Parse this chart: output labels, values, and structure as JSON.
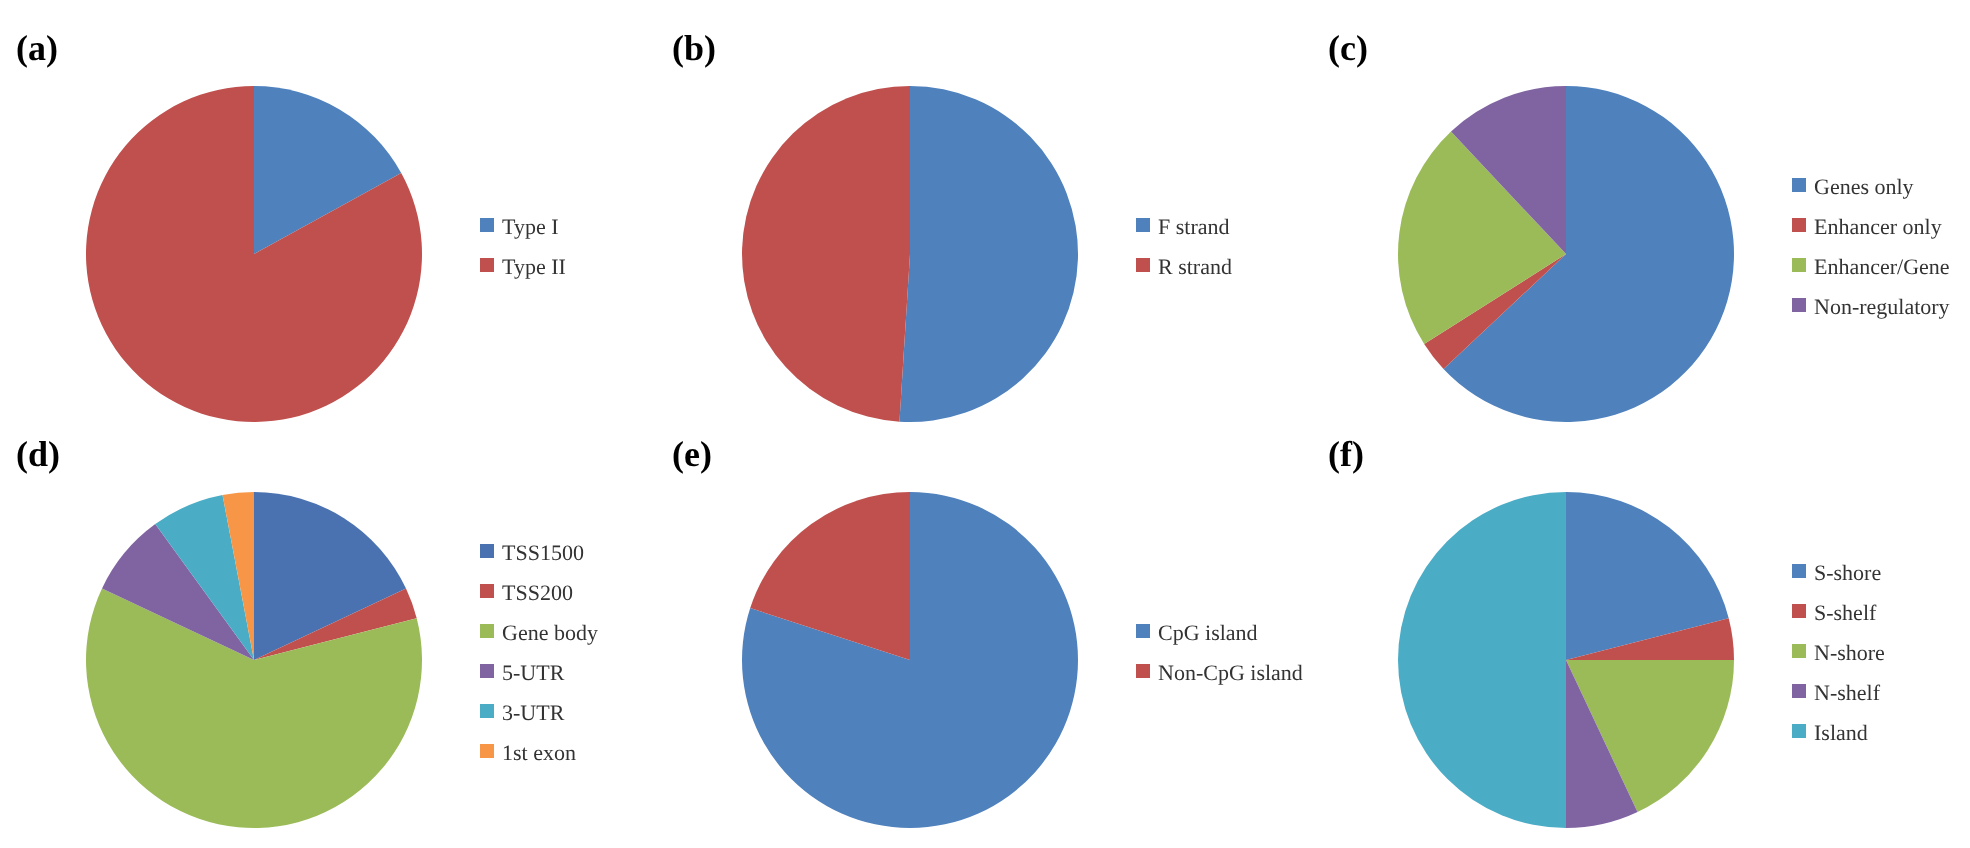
{
  "chart_data": [
    {
      "type": "pie",
      "title": "(a)",
      "categories": [
        "Type I",
        "Type II"
      ],
      "values": [
        17,
        83
      ],
      "colors": [
        "#4f81bd",
        "#c0504d"
      ],
      "legend": "right"
    },
    {
      "type": "pie",
      "title": "(b)",
      "categories": [
        "F strand",
        "R strand"
      ],
      "values": [
        51,
        49
      ],
      "colors": [
        "#4f81bd",
        "#c0504d"
      ],
      "legend": "right"
    },
    {
      "type": "pie",
      "title": "(c)",
      "categories": [
        "Genes only",
        "Enhancer only",
        "Enhancer/Gene",
        "Non-regulatory"
      ],
      "values": [
        63,
        3,
        22,
        12
      ],
      "colors": [
        "#4f81bd",
        "#c0504d",
        "#9bbb59",
        "#8064a2"
      ],
      "legend": "right"
    },
    {
      "type": "pie",
      "title": "(d)",
      "categories": [
        "TSS1500",
        "TSS200",
        "Gene body",
        "5-UTR",
        "3-UTR",
        "1st exon"
      ],
      "values": [
        18,
        3,
        61,
        8,
        7,
        3
      ],
      "colors": [
        "#4a72b0",
        "#c0504d",
        "#9bbb59",
        "#8064a2",
        "#4bacc6",
        "#f79646"
      ],
      "legend": "right"
    },
    {
      "type": "pie",
      "title": "(e)",
      "categories": [
        "CpG island",
        "Non-CpG island"
      ],
      "values": [
        80,
        20
      ],
      "colors": [
        "#4f81bd",
        "#c0504d"
      ],
      "legend": "right"
    },
    {
      "type": "pie",
      "title": "(f)",
      "categories": [
        "S-shore",
        "S-shelf",
        "N-shore",
        "N-shelf",
        "Island"
      ],
      "values": [
        21,
        4,
        18,
        7,
        50
      ],
      "colors": [
        "#4f81bd",
        "#c0504d",
        "#9bbb59",
        "#8064a2",
        "#4bacc6"
      ],
      "legend": "right"
    }
  ]
}
